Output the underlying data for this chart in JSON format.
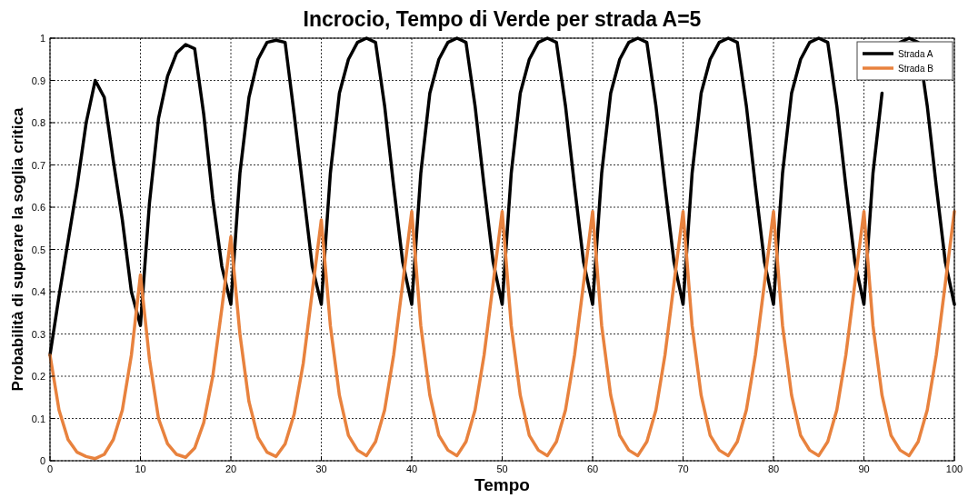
{
  "chart_data": {
    "type": "line",
    "title": "Incrocio, Tempo di Verde per strada A=5",
    "xlabel": "Tempo",
    "ylabel": "Probabilità di superare la soglia critica",
    "x": [
      0,
      1,
      2,
      3,
      4,
      5,
      6,
      7,
      8,
      9,
      10,
      11,
      12,
      13,
      14,
      15,
      16,
      17,
      18,
      19,
      20,
      21,
      22,
      23,
      24,
      25,
      26,
      27,
      28,
      29,
      30,
      31,
      32,
      33,
      34,
      35,
      36,
      37,
      38,
      39,
      40,
      41,
      42,
      43,
      44,
      45,
      46,
      47,
      48,
      49,
      50,
      51,
      52,
      53,
      54,
      55,
      56,
      57,
      58,
      59,
      60,
      61,
      62,
      63,
      64,
      65,
      66,
      67,
      68,
      69,
      70,
      71,
      72,
      73,
      74,
      75,
      76,
      77,
      78,
      79,
      80,
      81,
      82,
      83,
      84,
      85,
      86,
      87,
      88,
      89,
      90,
      91,
      92,
      93,
      94,
      95,
      96,
      97,
      98,
      99,
      100
    ],
    "series": [
      {
        "name": "Strada A",
        "color": "#000000",
        "values": [
          0.25,
          0.39,
          0.52,
          0.65,
          0.8,
          0.9,
          0.86,
          0.71,
          0.57,
          0.4,
          0.32,
          0.61,
          0.81,
          0.91,
          0.965,
          0.985,
          0.975,
          0.82,
          0.62,
          0.46,
          0.37,
          0.68,
          0.86,
          0.95,
          0.99,
          0.995,
          0.99,
          0.82,
          0.64,
          0.46,
          0.37,
          0.68,
          0.87,
          0.95,
          0.99,
          1.0,
          0.99,
          0.84,
          0.65,
          0.47,
          0.37,
          0.68,
          0.87,
          0.95,
          0.99,
          1.0,
          0.99,
          0.84,
          0.65,
          0.47,
          0.37,
          0.68,
          0.87,
          0.95,
          0.99,
          1.0,
          0.99,
          0.84,
          0.65,
          0.47,
          0.37,
          0.68,
          0.87,
          0.95,
          0.99,
          1.0,
          0.99,
          0.84,
          0.65,
          0.47,
          0.37,
          0.68,
          0.87,
          0.95,
          0.99,
          1.0,
          0.99,
          0.84,
          0.65,
          0.47,
          0.37,
          0.68,
          0.87,
          0.95,
          0.99,
          1.0,
          0.99,
          0.84,
          0.65,
          0.47,
          0.37,
          0.68,
          0.87,
          null,
          0.99,
          1.0,
          0.99,
          0.84,
          0.65,
          0.47,
          0.37
        ]
      },
      {
        "name": "Strada B",
        "color": "#e8823e",
        "values": [
          0.25,
          0.12,
          0.05,
          0.02,
          0.01,
          0.005,
          0.015,
          0.05,
          0.12,
          0.25,
          0.44,
          0.24,
          0.1,
          0.04,
          0.015,
          0.008,
          0.03,
          0.09,
          0.2,
          0.36,
          0.53,
          0.3,
          0.14,
          0.055,
          0.02,
          0.01,
          0.04,
          0.11,
          0.23,
          0.4,
          0.57,
          0.32,
          0.155,
          0.06,
          0.025,
          0.012,
          0.045,
          0.12,
          0.25,
          0.42,
          0.59,
          0.32,
          0.155,
          0.06,
          0.025,
          0.012,
          0.045,
          0.12,
          0.25,
          0.42,
          0.59,
          0.32,
          0.155,
          0.06,
          0.025,
          0.012,
          0.045,
          0.12,
          0.25,
          0.42,
          0.59,
          0.32,
          0.155,
          0.06,
          0.025,
          0.012,
          0.045,
          0.12,
          0.25,
          0.42,
          0.59,
          0.32,
          0.155,
          0.06,
          0.025,
          0.012,
          0.045,
          0.12,
          0.25,
          0.42,
          0.59,
          0.32,
          0.155,
          0.06,
          0.025,
          0.012,
          0.045,
          0.12,
          0.25,
          0.42,
          0.59,
          0.32,
          0.155,
          0.06,
          0.025,
          0.012,
          0.045,
          0.12,
          0.25,
          0.42,
          0.59
        ]
      }
    ],
    "xlim": [
      0,
      100
    ],
    "xticks": [
      0,
      10,
      20,
      30,
      40,
      50,
      60,
      70,
      80,
      90,
      100
    ],
    "ylim": [
      0,
      1
    ],
    "yticks": [
      0,
      0.1,
      0.2,
      0.3,
      0.4,
      0.5,
      0.6,
      0.7,
      0.8,
      0.9,
      1
    ],
    "grid": true,
    "legend": "top right"
  }
}
